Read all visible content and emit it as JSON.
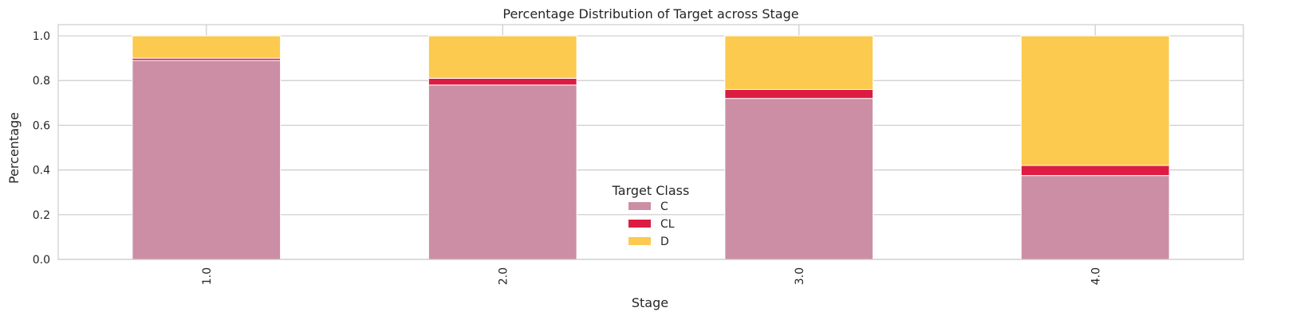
{
  "chart_data": {
    "type": "bar",
    "stacked": true,
    "title": "Percentage Distribution of Target across Stage",
    "xlabel": "Stage",
    "ylabel": "Percentage",
    "categories": [
      "1.0",
      "2.0",
      "3.0",
      "4.0"
    ],
    "series": [
      {
        "name": "C",
        "color": "#cc8ea5",
        "values": [
          0.89,
          0.78,
          0.72,
          0.375
        ]
      },
      {
        "name": "CL",
        "color": "#dc1c43",
        "values": [
          0.01,
          0.03,
          0.04,
          0.045
        ]
      },
      {
        "name": "D",
        "color": "#fbca4f",
        "values": [
          0.1,
          0.19,
          0.24,
          0.58
        ]
      }
    ],
    "ylim": [
      0,
      1.05
    ],
    "yticks": [
      "0.0",
      "0.2",
      "0.4",
      "0.6",
      "0.8",
      "1.0"
    ],
    "grid": true,
    "legend": {
      "title": "Target Class",
      "placement": "lower-center"
    }
  }
}
